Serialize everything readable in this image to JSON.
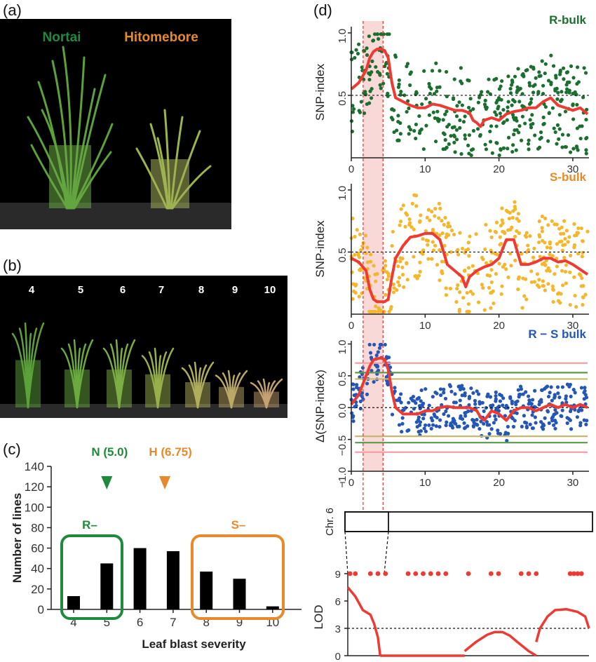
{
  "panels": {
    "a": "(a)",
    "b": "(b)",
    "c": "(c)",
    "d": "(d)"
  },
  "photo_a": {
    "nortai": "Nortai",
    "hitomebore": "Hitomebore"
  },
  "photo_b": {
    "labels": [
      "4",
      "5",
      "6",
      "7",
      "8",
      "9",
      "10"
    ]
  },
  "colors": {
    "nortai": "#1e8a3c",
    "hitomebore": "#e8892b",
    "rbulk": "#1a6e2e",
    "sbulk": "#f5b62a",
    "rsbulk": "#2456b8",
    "curve": "#ee3a33",
    "interval": "#f6c9c6"
  },
  "chart_data": [
    {
      "type": "bar",
      "title": "",
      "xlabel": "Leaf blast severity",
      "ylabel": "Number of lines",
      "categories": [
        "4",
        "5",
        "6",
        "7",
        "8",
        "9",
        "10"
      ],
      "values": [
        13,
        45,
        60,
        57,
        37,
        30,
        3
      ],
      "ylim": [
        0,
        140
      ],
      "yticks": [
        "0",
        "20",
        "40",
        "60",
        "80",
        "100",
        "120",
        "140"
      ],
      "annotations": {
        "n": "N (5.0)",
        "n_value": 5.0,
        "h": "H (6.75)",
        "h_value": 6.75,
        "r_group": "R–",
        "s_group": "S–"
      }
    },
    {
      "type": "scatter",
      "title": "R-bulk",
      "ylabel": "SNP-index",
      "xlabel": "",
      "xlim": [
        0,
        32
      ],
      "ylim": [
        0,
        1.05
      ],
      "xticks": [
        "0",
        "10",
        "20",
        "30"
      ],
      "yticks": [
        "0.5",
        "1.0"
      ],
      "threshold": 0.5,
      "sliding_window": {
        "x": [
          0,
          1,
          2,
          2.5,
          3,
          3.5,
          4,
          4.5,
          5,
          5.5,
          6,
          7,
          8,
          9,
          10,
          11,
          12,
          13,
          14,
          15,
          16,
          16.5,
          17,
          17.5,
          18,
          19,
          20,
          21,
          22,
          23,
          24,
          25,
          26,
          27,
          28,
          29,
          30,
          31,
          32
        ],
        "y": [
          0.55,
          0.6,
          0.7,
          0.8,
          0.85,
          0.87,
          0.87,
          0.86,
          0.8,
          0.6,
          0.48,
          0.45,
          0.42,
          0.4,
          0.4,
          0.43,
          0.42,
          0.4,
          0.38,
          0.38,
          0.36,
          0.3,
          0.28,
          0.25,
          0.3,
          0.32,
          0.3,
          0.35,
          0.37,
          0.38,
          0.4,
          0.4,
          0.45,
          0.48,
          0.42,
          0.4,
          0.38,
          0.4,
          0.35
        ]
      }
    },
    {
      "type": "scatter",
      "title": "S-bulk",
      "ylabel": "SNP-index",
      "xlabel": "",
      "xlim": [
        0,
        32
      ],
      "ylim": [
        0,
        1.05
      ],
      "xticks": [
        "0",
        "10",
        "20",
        "30"
      ],
      "yticks": [
        "0.5",
        "1.0"
      ],
      "threshold": 0.5,
      "sliding_window": {
        "x": [
          0,
          1,
          2,
          2.5,
          3,
          3.5,
          4,
          4.5,
          5,
          5.5,
          6,
          7,
          8,
          9,
          10,
          11,
          12,
          13,
          14,
          15,
          15.5,
          16,
          17,
          18,
          19,
          20,
          21,
          22,
          23,
          24,
          25,
          26,
          27,
          28,
          29,
          30,
          31,
          32
        ],
        "y": [
          0.45,
          0.42,
          0.35,
          0.2,
          0.12,
          0.1,
          0.1,
          0.1,
          0.12,
          0.3,
          0.45,
          0.55,
          0.62,
          0.63,
          0.65,
          0.65,
          0.6,
          0.4,
          0.35,
          0.3,
          0.22,
          0.3,
          0.35,
          0.38,
          0.4,
          0.45,
          0.6,
          0.6,
          0.4,
          0.4,
          0.42,
          0.45,
          0.45,
          0.42,
          0.43,
          0.4,
          0.36,
          0.32
        ]
      }
    },
    {
      "type": "scatter",
      "title": "R − S bulk",
      "ylabel": "Δ(SNP-index)",
      "xlabel": "",
      "xlim": [
        0,
        32
      ],
      "ylim": [
        -1,
        1.05
      ],
      "xticks": [
        "0",
        "10",
        "20",
        "30"
      ],
      "xticks_prefix": "−",
      "yticks": [
        "−1.0",
        "−0.5",
        "0.0",
        "0.5",
        "1.0"
      ],
      "threshold": 0.0,
      "sliding_window": {
        "x": [
          0,
          1,
          2,
          2.5,
          3,
          3.5,
          4,
          4.5,
          5,
          5.5,
          6,
          7,
          8,
          9,
          10,
          11,
          12,
          13,
          14,
          15,
          16,
          17,
          17.5,
          18,
          19,
          20,
          21,
          22,
          23,
          24,
          25,
          26,
          27,
          28,
          29,
          30,
          31,
          32
        ],
        "y": [
          0.05,
          0.2,
          0.5,
          0.65,
          0.75,
          0.77,
          0.78,
          0.76,
          0.6,
          0.25,
          0.0,
          -0.1,
          -0.1,
          -0.1,
          -0.05,
          -0.05,
          0.0,
          0.02,
          0.0,
          0.0,
          0.0,
          -0.05,
          -0.15,
          -0.2,
          -0.05,
          -0.1,
          -0.2,
          -0.05,
          0.0,
          0.0,
          -0.05,
          0.0,
          0.05,
          0.0,
          0.05,
          0.0,
          0.05,
          0.0
        ]
      },
      "confidence_99": [
        0.7,
        -0.7
      ],
      "confidence_95": [
        0.55,
        -0.55
      ],
      "confidence_90": [
        0.45,
        -0.45
      ]
    },
    {
      "type": "line",
      "title": "",
      "ylabel": "LOD",
      "xlabel": "",
      "xlim": [
        0,
        32
      ],
      "ylim": [
        0,
        9
      ],
      "yticks": [
        "0",
        "3",
        "6",
        "9"
      ],
      "threshold": 3,
      "markers_x": [
        0.3,
        1,
        3,
        4,
        5,
        8,
        9,
        10,
        11,
        12,
        13,
        16,
        19,
        20,
        23,
        24,
        25,
        29.5,
        30,
        30.5,
        31
      ],
      "segments": [
        {
          "x": [
            0,
            0.5,
            1,
            2,
            3,
            3.5,
            4,
            4.3
          ],
          "y": [
            7.5,
            7,
            6.5,
            5,
            4.5,
            3.5,
            2,
            0
          ]
        },
        {
          "x": [
            4.3,
            10,
            15.5
          ],
          "y": [
            0,
            0,
            0
          ]
        },
        {
          "x": [
            15.5,
            17,
            18.5,
            19.5,
            20.5,
            21.5,
            22.5,
            24,
            25
          ],
          "y": [
            0.5,
            1.5,
            2.3,
            2.6,
            2.6,
            2.2,
            1.5,
            0.5,
            0
          ]
        },
        {
          "x": [
            25,
            25.5,
            26.5,
            27.5,
            29,
            30.5,
            31.5,
            32
          ],
          "y": [
            1.5,
            3,
            4.3,
            5,
            5.1,
            4.8,
            4.3,
            3
          ]
        }
      ]
    }
  ],
  "chr": {
    "label": "Chr. 6"
  }
}
